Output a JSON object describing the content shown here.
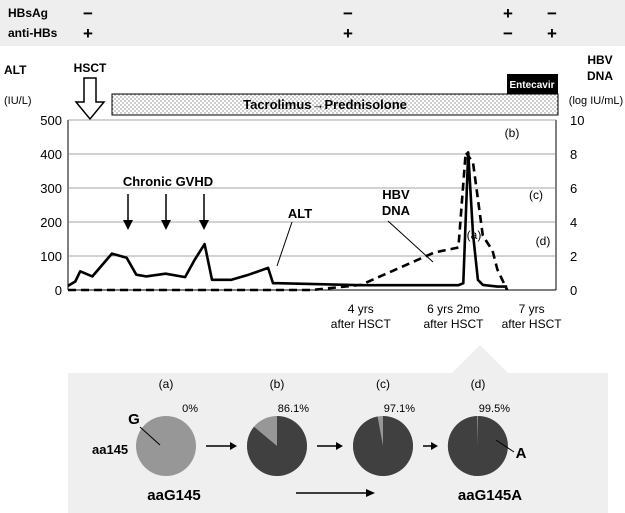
{
  "chart_data": {
    "type": "line",
    "markers": {
      "rows": [
        {
          "label": "HBsAg",
          "signs": [
            "−",
            "−",
            "+",
            "−"
          ]
        },
        {
          "label": "anti-HBs",
          "signs": [
            "+",
            "+",
            "−",
            "+"
          ]
        }
      ]
    },
    "left_axis": {
      "label": "ALT",
      "unit": "(IU/L)",
      "ticks": [
        "0",
        "100",
        "200",
        "300",
        "400",
        "500"
      ],
      "ylim": [
        0,
        500
      ]
    },
    "right_axis": {
      "label": "HBV",
      "label2": "DNA",
      "unit": "(log IU/mL)",
      "ticks": [
        "0",
        "2",
        "4",
        "6",
        "8",
        "10"
      ],
      "ylim": [
        0,
        10
      ]
    },
    "xlim": [
      0,
      100
    ],
    "x_labels": [
      {
        "x": 60,
        "lines": [
          "4 yrs",
          "after HSCT"
        ]
      },
      {
        "x": 79,
        "lines": [
          "6 yrs 2mo",
          "after HSCT"
        ]
      },
      {
        "x": 95,
        "lines": [
          "7 yrs",
          "after HSCT"
        ]
      }
    ],
    "treatments": {
      "hsct": "HSCT",
      "immunosuppression": "Tacrolimus→Prednisolone",
      "antiviral": "Entecavir"
    },
    "annotations": {
      "gvhd": "Chronic GVHD",
      "alt_label": "ALT",
      "hbv_label_line1": "HBV",
      "hbv_label_line2": "DNA",
      "points": [
        "(a)",
        "(b)",
        "(c)",
        "(d)"
      ]
    },
    "series": [
      {
        "name": "ALT",
        "axis": "left",
        "style": "solid",
        "x": [
          0,
          1.5,
          2.5,
          5,
          9,
          12,
          14,
          16,
          20,
          24,
          26,
          28,
          29.5,
          31,
          33.5,
          37,
          41,
          42,
          43,
          60,
          75,
          80,
          81,
          82,
          83,
          84,
          85,
          88,
          90
        ],
        "y": [
          12,
          25,
          55,
          40,
          107,
          95,
          45,
          40,
          48,
          38,
          90,
          135,
          30,
          30,
          30,
          45,
          65,
          20,
          20,
          14,
          14,
          14,
          20,
          405,
          165,
          30,
          15,
          10,
          10
        ]
      },
      {
        "name": "HBV DNA",
        "axis": "right",
        "style": "dashed",
        "x": [
          0,
          50,
          60,
          75,
          80,
          81.5,
          83,
          85,
          87,
          88,
          90
        ],
        "y": [
          0,
          0,
          0.3,
          2.2,
          2.5,
          8.1,
          7.5,
          3.2,
          2.3,
          1.2,
          0
        ]
      }
    ],
    "pies": {
      "row_label": "aa145",
      "start_label": "aaG145",
      "end_label": "aaG145A",
      "g_label": "G",
      "a_label": "A",
      "items": [
        {
          "tag": "(a)",
          "pct_text": "0%",
          "fraction": 0.0
        },
        {
          "tag": "(b)",
          "pct_text": "86.1%",
          "fraction": 0.861
        },
        {
          "tag": "(c)",
          "pct_text": "97.1%",
          "fraction": 0.971
        },
        {
          "tag": "(d)",
          "pct_text": "99.5%",
          "fraction": 0.995
        }
      ]
    },
    "colors": {
      "pie_base": "#979797",
      "pie_mutant": "#404040",
      "header_band": "#eeeeee",
      "panel_bg": "#efefef",
      "entecavir_bar": "#000000"
    }
  }
}
